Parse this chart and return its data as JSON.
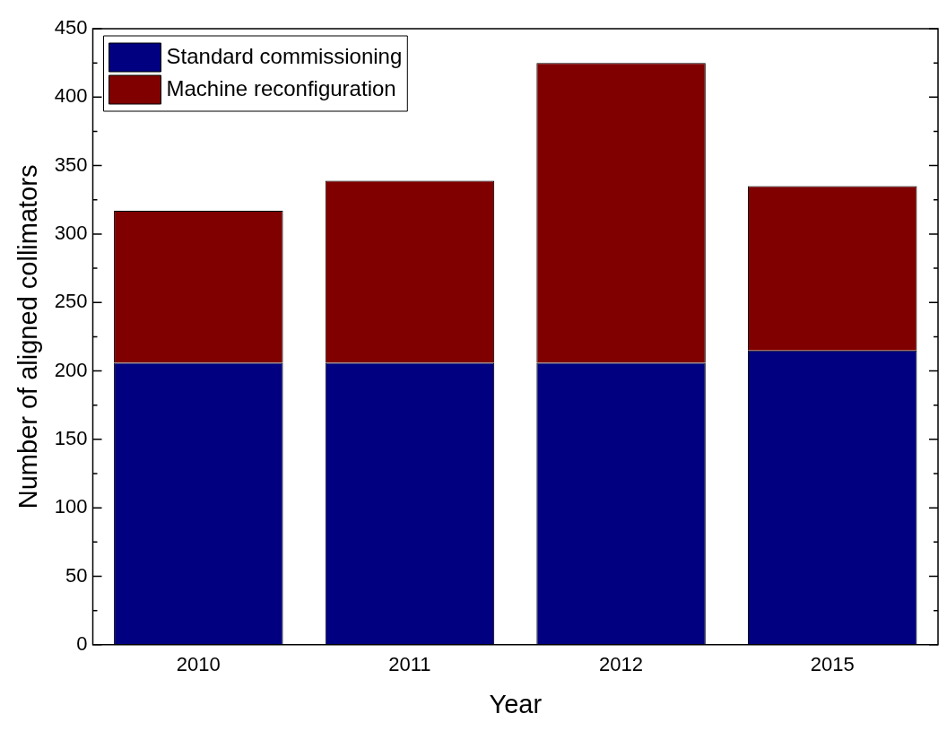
{
  "chart_data": {
    "type": "bar",
    "stacked": true,
    "xlabel": "Year",
    "ylabel": "Number of aligned collimators",
    "categories": [
      "2010",
      "2011",
      "2012",
      "2015"
    ],
    "series": [
      {
        "name": "Standard commissioning",
        "color": "#000080",
        "values": [
          206,
          206,
          206,
          215
        ]
      },
      {
        "name": "Machine reconfiguration",
        "color": "#800000",
        "values": [
          111,
          133,
          219,
          120
        ]
      }
    ],
    "ylim": [
      0,
      450
    ],
    "yticks": [
      0,
      50,
      100,
      150,
      200,
      250,
      300,
      350,
      400,
      450
    ],
    "grid": false,
    "legend": "top left"
  }
}
